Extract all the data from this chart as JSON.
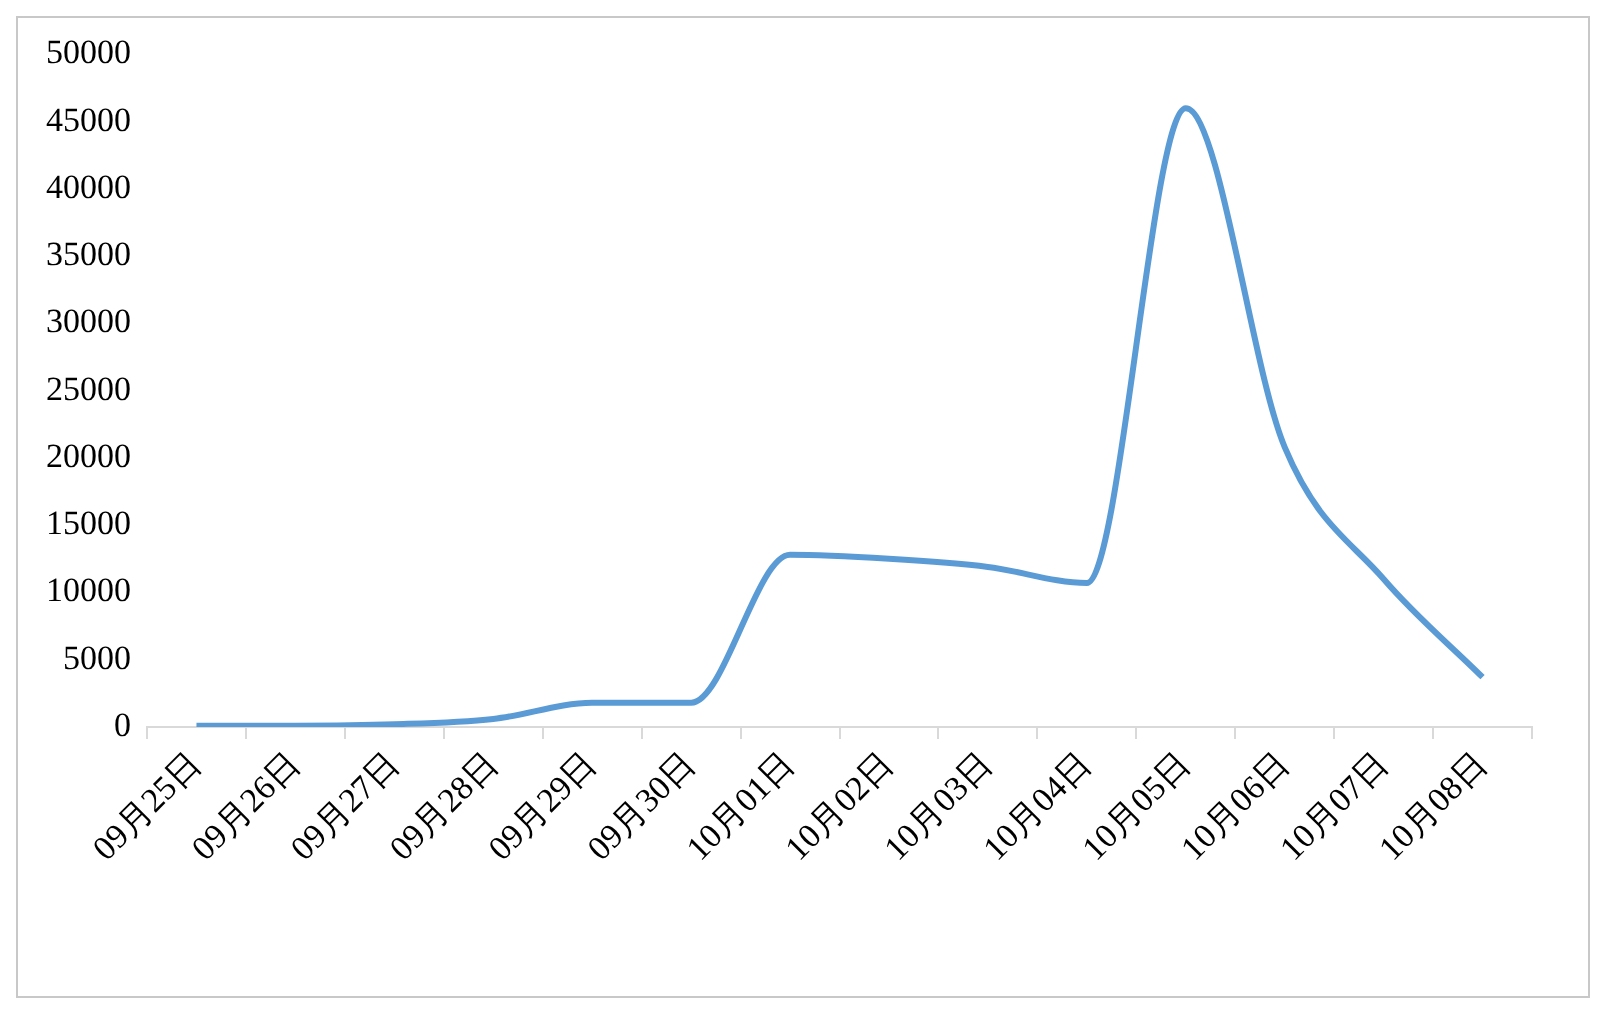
{
  "chart_data": {
    "type": "line",
    "categories": [
      "09月25日",
      "09月26日",
      "09月27日",
      "09月28日",
      "09月29日",
      "09月30日",
      "10月01日",
      "10月02日",
      "10月03日",
      "10月04日",
      "10月05日",
      "10月06日",
      "10月07日",
      "10月08日"
    ],
    "series": [
      {
        "color": "#5b9bd5",
        "values": [
          100,
          100,
          200,
          600,
          1800,
          1800,
          12800,
          12500,
          11900,
          10700,
          46000,
          20800,
          11000,
          3700
        ]
      }
    ],
    "ylim": [
      0,
      50000
    ],
    "yticks": [
      0,
      5000,
      10000,
      15000,
      20000,
      25000,
      30000,
      35000,
      40000,
      45000,
      50000
    ],
    "legend": false,
    "grid": false,
    "marker": "none",
    "line_style": "solid"
  }
}
